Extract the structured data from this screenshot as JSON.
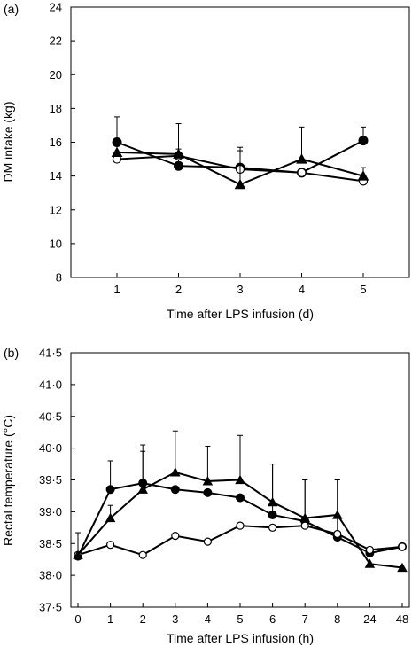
{
  "chart_data": [
    {
      "type": "line",
      "panel_label": "(a)",
      "xlabel": "Time after LPS infusion (d)",
      "ylabel": "DM intake (kg)",
      "categories": [
        "1",
        "2",
        "3",
        "4",
        "5"
      ],
      "ylim": [
        8,
        24
      ],
      "yticks": [
        "8",
        "10",
        "12",
        "14",
        "16",
        "18",
        "20",
        "22",
        "24"
      ],
      "grid": false,
      "series": [
        {
          "marker": "circle-filled",
          "values": [
            16.0,
            14.6,
            14.5,
            14.2,
            16.1
          ],
          "error_plus": [
            1.5,
            1.0,
            1.0,
            0.0,
            0.8
          ]
        },
        {
          "marker": "circle-open",
          "values": [
            15.0,
            15.2,
            14.4,
            14.2,
            13.7
          ],
          "error_plus": [
            0.0,
            0.0,
            0.0,
            0.0,
            0.0
          ]
        },
        {
          "marker": "triangle-filled",
          "values": [
            15.4,
            15.3,
            13.5,
            15.0,
            14.0
          ],
          "error_plus": [
            0.5,
            1.8,
            2.2,
            1.9,
            0.5
          ]
        }
      ]
    },
    {
      "type": "line",
      "panel_label": "(b)",
      "xlabel": "Time after LPS infusion (h)",
      "ylabel": "Rectal temperature (°C)",
      "categories": [
        "0",
        "1",
        "2",
        "3",
        "4",
        "5",
        "6",
        "7",
        "8",
        "24",
        "48"
      ],
      "ylim": [
        37.5,
        41.5
      ],
      "yticks": [
        "37·5",
        "38·0",
        "38·5",
        "39·0",
        "39·5",
        "40·0",
        "40·5",
        "41·0",
        "41·5"
      ],
      "grid": false,
      "series": [
        {
          "marker": "circle-filled",
          "values": [
            38.3,
            39.35,
            39.45,
            39.35,
            39.3,
            39.22,
            38.95,
            38.85,
            38.6,
            38.35,
            38.45
          ],
          "error_plus": [
            0.0,
            0.45,
            0.6,
            0.0,
            0.0,
            0.0,
            0.8,
            0.65,
            0.9,
            0.0,
            0.0
          ]
        },
        {
          "marker": "circle-open",
          "values": [
            38.32,
            38.48,
            38.32,
            38.62,
            38.53,
            38.78,
            38.75,
            38.78,
            38.65,
            38.4,
            38.45
          ],
          "error_plus": [
            0.35,
            0.0,
            0.0,
            0.0,
            0.0,
            0.0,
            0.0,
            0.0,
            0.0,
            0.0,
            0.0
          ]
        },
        {
          "marker": "triangle-filled",
          "values": [
            38.32,
            38.9,
            39.35,
            39.62,
            39.48,
            39.5,
            39.15,
            38.9,
            38.95,
            38.18,
            38.12
          ],
          "error_plus": [
            0.0,
            0.2,
            0.6,
            0.65,
            0.55,
            0.7,
            0.6,
            0.6,
            0.55,
            0.0,
            0.0
          ]
        }
      ]
    }
  ]
}
